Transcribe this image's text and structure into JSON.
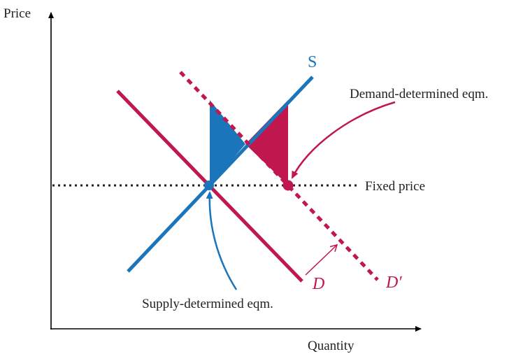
{
  "axes": {
    "y_label": "Price",
    "x_label": "Quantity"
  },
  "curves": {
    "supply": "S",
    "demand": "D",
    "new_demand": "D′"
  },
  "labels": {
    "fixed_price": "Fixed price",
    "demand_eqm": "Demand-determined eqm.",
    "supply_eqm": "Supply-determined eqm."
  }
}
